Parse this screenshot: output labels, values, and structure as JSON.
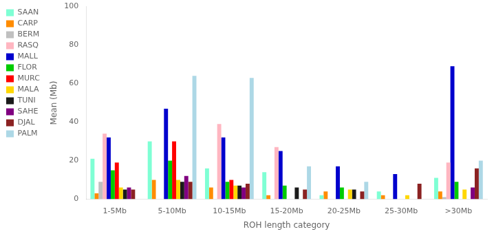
{
  "chart_data": {
    "type": "bar",
    "xlabel": "ROH length category",
    "ylabel": "Mean (Mb)",
    "categories": [
      "1-5Mb",
      "5-10Mb",
      "10-15Mb",
      "15-20Mb",
      "20-25Mb",
      "25-30Mb",
      ">30Mb"
    ],
    "series": [
      {
        "name": "SAAN",
        "color": "#7fffd4",
        "values": [
          21,
          30,
          16,
          14,
          2,
          4,
          11
        ]
      },
      {
        "name": "CARP",
        "color": "#ff8c00",
        "values": [
          3,
          10,
          6,
          2,
          4,
          2,
          4
        ]
      },
      {
        "name": "BERM",
        "color": "#c0c0c0",
        "values": [
          9,
          0,
          0,
          0,
          0,
          0,
          1
        ]
      },
      {
        "name": "RASQ",
        "color": "#ffb6c1",
        "values": [
          34,
          0,
          39,
          27,
          0,
          0,
          19
        ]
      },
      {
        "name": "MALL",
        "color": "#0000cd",
        "values": [
          32,
          47,
          32,
          25,
          17,
          13,
          69
        ]
      },
      {
        "name": "FLOR",
        "color": "#00cc00",
        "values": [
          15,
          20,
          9,
          7,
          6,
          0,
          9
        ]
      },
      {
        "name": "MURC",
        "color": "#ff0000",
        "values": [
          19,
          30,
          10,
          0,
          0,
          0,
          0
        ]
      },
      {
        "name": "MALA",
        "color": "#ffd700",
        "values": [
          6,
          10,
          7,
          0,
          5,
          2,
          5
        ]
      },
      {
        "name": "TUNI",
        "color": "#1a1a1a",
        "values": [
          5,
          9,
          7,
          6,
          5,
          0,
          0
        ]
      },
      {
        "name": "SAHE",
        "color": "#800080",
        "values": [
          6,
          12,
          6,
          0,
          0,
          0,
          6
        ]
      },
      {
        "name": "DJAL",
        "color": "#8b2222",
        "values": [
          5,
          9,
          8,
          5,
          4,
          8,
          16
        ]
      },
      {
        "name": "PALM",
        "color": "#add8e6",
        "values": [
          0,
          64,
          63,
          17,
          9,
          0,
          20
        ]
      }
    ],
    "ylim": [
      0,
      100
    ],
    "yticks": [
      0,
      20,
      40,
      60,
      80,
      100
    ],
    "grid": false,
    "legend": "upper left"
  }
}
